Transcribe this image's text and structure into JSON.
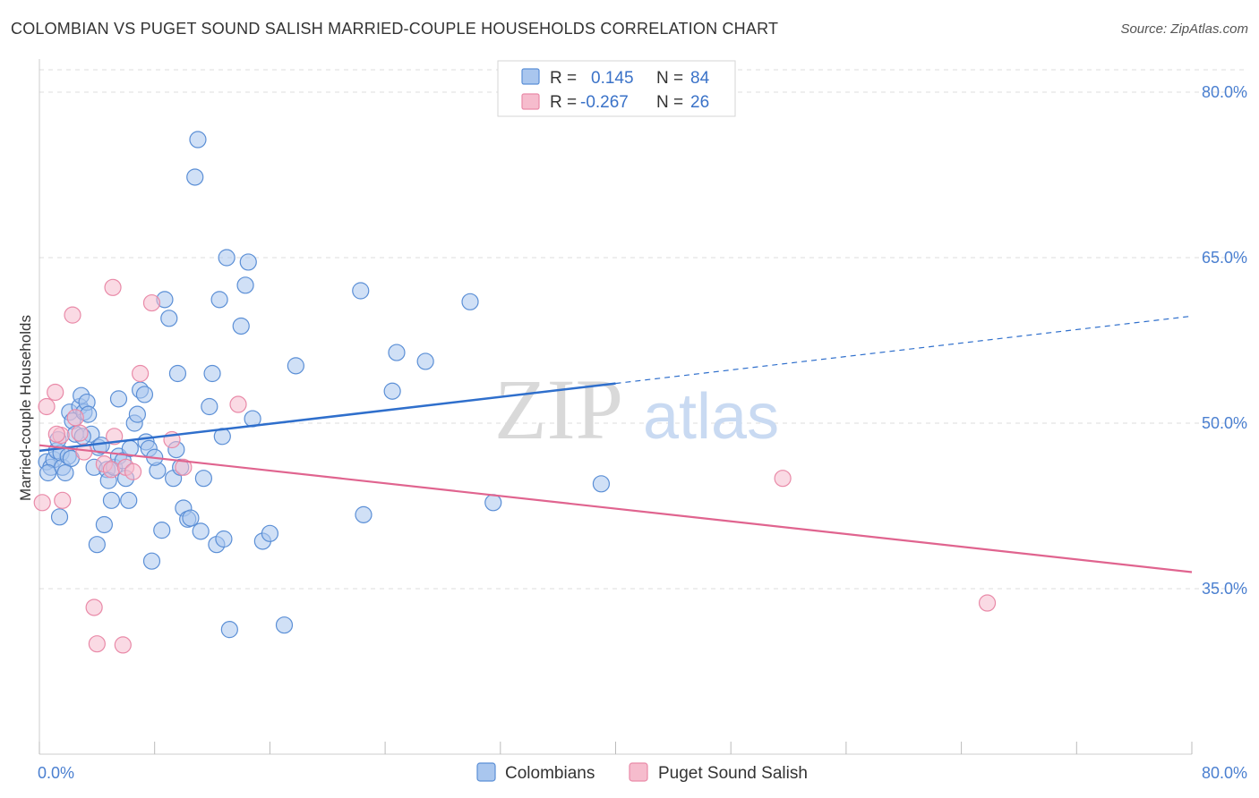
{
  "header": {
    "title": "COLOMBIAN VS PUGET SOUND SALISH MARRIED-COUPLE HOUSEHOLDS CORRELATION CHART",
    "source": "Source: ZipAtlas.com"
  },
  "watermark": {
    "zip": "ZIP",
    "atlas": "atlas"
  },
  "colors": {
    "blue_fill": "#a9c6ee",
    "blue_stroke": "#5b8fd6",
    "blue_line": "#2f6fcc",
    "pink_fill": "#f6bccd",
    "pink_stroke": "#e98aa8",
    "pink_line": "#e0648f",
    "tick_text": "#4a7fd0",
    "grid": "#dddddd"
  },
  "legend": {
    "rows": [
      {
        "r_label": "R =",
        "r_value": "0.145",
        "n_label": "N =",
        "n_value": "84",
        "color": "blue"
      },
      {
        "r_label": "R =",
        "r_value": "-0.267",
        "n_label": "N =",
        "n_value": "26",
        "color": "pink"
      }
    ]
  },
  "chart_data": {
    "type": "scatter",
    "title": "COLOMBIAN VS PUGET SOUND SALISH MARRIED-COUPLE HOUSEHOLDS CORRELATION CHART",
    "xlabel": "",
    "ylabel": "Married-couple Households",
    "xlim": [
      0,
      80
    ],
    "ylim": [
      20,
      83
    ],
    "x_tick_labels": [
      "0.0%",
      "80.0%"
    ],
    "y_ticks": [
      35,
      50,
      65,
      80
    ],
    "y_tick_labels": [
      "35.0%",
      "50.0%",
      "65.0%",
      "80.0%"
    ],
    "grid": "horizontal dashed",
    "legend_position": "top-center",
    "series": [
      {
        "name": "Colombians",
        "color": "blue",
        "trend": {
          "x": [
            0,
            40
          ],
          "y": [
            47.5,
            53.6
          ],
          "dashed_to": [
            80,
            59.7
          ]
        },
        "points": [
          [
            0.5,
            46.5
          ],
          [
            0.8,
            46.0
          ],
          [
            1.0,
            46.7
          ],
          [
            1.2,
            47.5
          ],
          [
            1.5,
            47.3
          ],
          [
            1.6,
            46.0
          ],
          [
            0.6,
            45.5
          ],
          [
            2.0,
            47.0
          ],
          [
            2.2,
            46.8
          ],
          [
            1.3,
            48.5
          ],
          [
            1.4,
            41.5
          ],
          [
            2.1,
            51.0
          ],
          [
            2.3,
            50.2
          ],
          [
            2.5,
            49.0
          ],
          [
            2.8,
            51.5
          ],
          [
            2.9,
            52.5
          ],
          [
            3.1,
            51.0
          ],
          [
            3.3,
            51.9
          ],
          [
            3.4,
            50.8
          ],
          [
            3.6,
            49.0
          ],
          [
            3.8,
            46.0
          ],
          [
            4.1,
            47.8
          ],
          [
            4.3,
            48.0
          ],
          [
            4.5,
            40.8
          ],
          [
            4.7,
            45.8
          ],
          [
            4.8,
            44.8
          ],
          [
            4.0,
            39.0
          ],
          [
            5.0,
            43.0
          ],
          [
            5.2,
            46.0
          ],
          [
            5.5,
            47.0
          ],
          [
            5.8,
            46.6
          ],
          [
            5.5,
            52.2
          ],
          [
            6.0,
            45.0
          ],
          [
            6.3,
            47.7
          ],
          [
            6.6,
            50.0
          ],
          [
            6.8,
            50.8
          ],
          [
            7.0,
            53.0
          ],
          [
            7.3,
            52.6
          ],
          [
            7.4,
            48.3
          ],
          [
            7.6,
            47.7
          ],
          [
            7.8,
            37.5
          ],
          [
            8.2,
            45.7
          ],
          [
            8.5,
            40.3
          ],
          [
            8.7,
            61.2
          ],
          [
            9.0,
            59.5
          ],
          [
            9.3,
            45.0
          ],
          [
            9.5,
            47.6
          ],
          [
            9.6,
            54.5
          ],
          [
            9.8,
            46.0
          ],
          [
            10.0,
            42.3
          ],
          [
            10.3,
            41.3
          ],
          [
            10.8,
            72.3
          ],
          [
            11.0,
            75.7
          ],
          [
            11.2,
            40.2
          ],
          [
            11.4,
            45.0
          ],
          [
            11.8,
            51.5
          ],
          [
            12.0,
            54.5
          ],
          [
            12.3,
            39.0
          ],
          [
            12.5,
            61.2
          ],
          [
            12.8,
            39.5
          ],
          [
            12.7,
            48.8
          ],
          [
            13.0,
            65.0
          ],
          [
            13.2,
            31.3
          ],
          [
            14.0,
            58.8
          ],
          [
            14.3,
            62.5
          ],
          [
            14.5,
            64.6
          ],
          [
            14.8,
            50.4
          ],
          [
            15.5,
            39.3
          ],
          [
            16.0,
            40.0
          ],
          [
            17.0,
            31.7
          ],
          [
            17.8,
            55.2
          ],
          [
            22.3,
            62.0
          ],
          [
            22.5,
            41.7
          ],
          [
            24.5,
            52.9
          ],
          [
            24.8,
            56.4
          ],
          [
            26.8,
            55.6
          ],
          [
            29.9,
            61.0
          ],
          [
            31.5,
            42.8
          ],
          [
            39.0,
            44.5
          ],
          [
            1.8,
            45.5
          ],
          [
            3.0,
            48.8
          ],
          [
            6.2,
            43.0
          ],
          [
            8.0,
            46.9
          ],
          [
            10.5,
            41.4
          ]
        ]
      },
      {
        "name": "Puget Sound Salish",
        "color": "pink",
        "trend": {
          "x": [
            0,
            80
          ],
          "y": [
            48.0,
            36.5
          ]
        },
        "points": [
          [
            0.2,
            42.8
          ],
          [
            0.5,
            51.5
          ],
          [
            1.1,
            52.8
          ],
          [
            1.5,
            48.9
          ],
          [
            1.6,
            43.0
          ],
          [
            2.3,
            59.8
          ],
          [
            2.5,
            50.5
          ],
          [
            2.8,
            49.1
          ],
          [
            3.1,
            47.4
          ],
          [
            3.8,
            33.3
          ],
          [
            4.0,
            30.0
          ],
          [
            4.5,
            46.3
          ],
          [
            5.0,
            45.8
          ],
          [
            5.2,
            48.8
          ],
          [
            5.8,
            29.9
          ],
          [
            6.0,
            46.0
          ],
          [
            6.5,
            45.6
          ],
          [
            7.0,
            54.5
          ],
          [
            7.8,
            60.9
          ],
          [
            9.2,
            48.5
          ],
          [
            10.0,
            46.0
          ],
          [
            13.8,
            51.7
          ],
          [
            5.1,
            62.3
          ],
          [
            51.6,
            45.0
          ],
          [
            65.8,
            33.7
          ],
          [
            1.2,
            49.0
          ]
        ]
      }
    ]
  },
  "bottom_legend": {
    "items": [
      "Colombians",
      "Puget Sound Salish"
    ]
  },
  "axis": {
    "ylabel": "Married-couple Households",
    "x_min_label": "0.0%",
    "x_max_label": "80.0%"
  }
}
